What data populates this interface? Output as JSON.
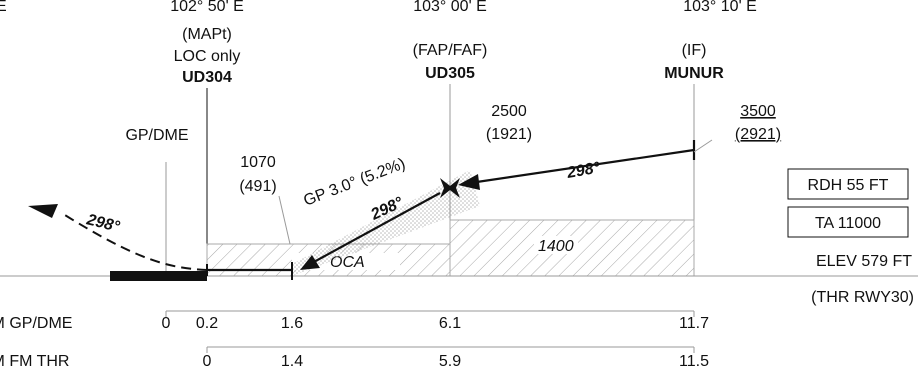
{
  "top_coords": {
    "left": "102° 50' E",
    "mid": "103° 00' E",
    "right": "103° 10' E"
  },
  "fixes": {
    "mapt": {
      "line1": "(MAPt)",
      "line2": "LOC only",
      "name": "UD304"
    },
    "faf": {
      "line1": "(FAP/FAF)",
      "name": "UD305"
    },
    "if": {
      "line1": "(IF)",
      "name": "MUNUR"
    }
  },
  "labels": {
    "gp_dme": "GP/DME",
    "alt_1070": "1070",
    "alt_491": "(491)",
    "alt_2500": "2500",
    "alt_1921": "(1921)",
    "alt_3500": "3500",
    "alt_2921": "(2921)",
    "glidepath": "GP 3.0° (5.2%)",
    "course_faf_if": "298°",
    "course_final": "298°",
    "course_missed": "298°",
    "oca": "OCA",
    "oca_1400": "1400"
  },
  "info_boxes": {
    "rdh": "RDH 55 FT",
    "ta": "TA 11000"
  },
  "elev": "ELEV 579 FT",
  "thr": "(THR RWY30)",
  "scales": {
    "gp_dme": {
      "label": "NM GP/DME",
      "ticks": [
        "0",
        "0.2",
        "1.6",
        "6.1",
        "11.7"
      ]
    },
    "thr": {
      "label": "NM FM THR",
      "ticks": [
        "0",
        "1.4",
        "5.9",
        "11.5"
      ]
    }
  },
  "colors": {
    "ink": "#111111",
    "grey": "#9a9a9a",
    "hatch": "#a8a8a8",
    "stipple": "#b8b8b8"
  }
}
